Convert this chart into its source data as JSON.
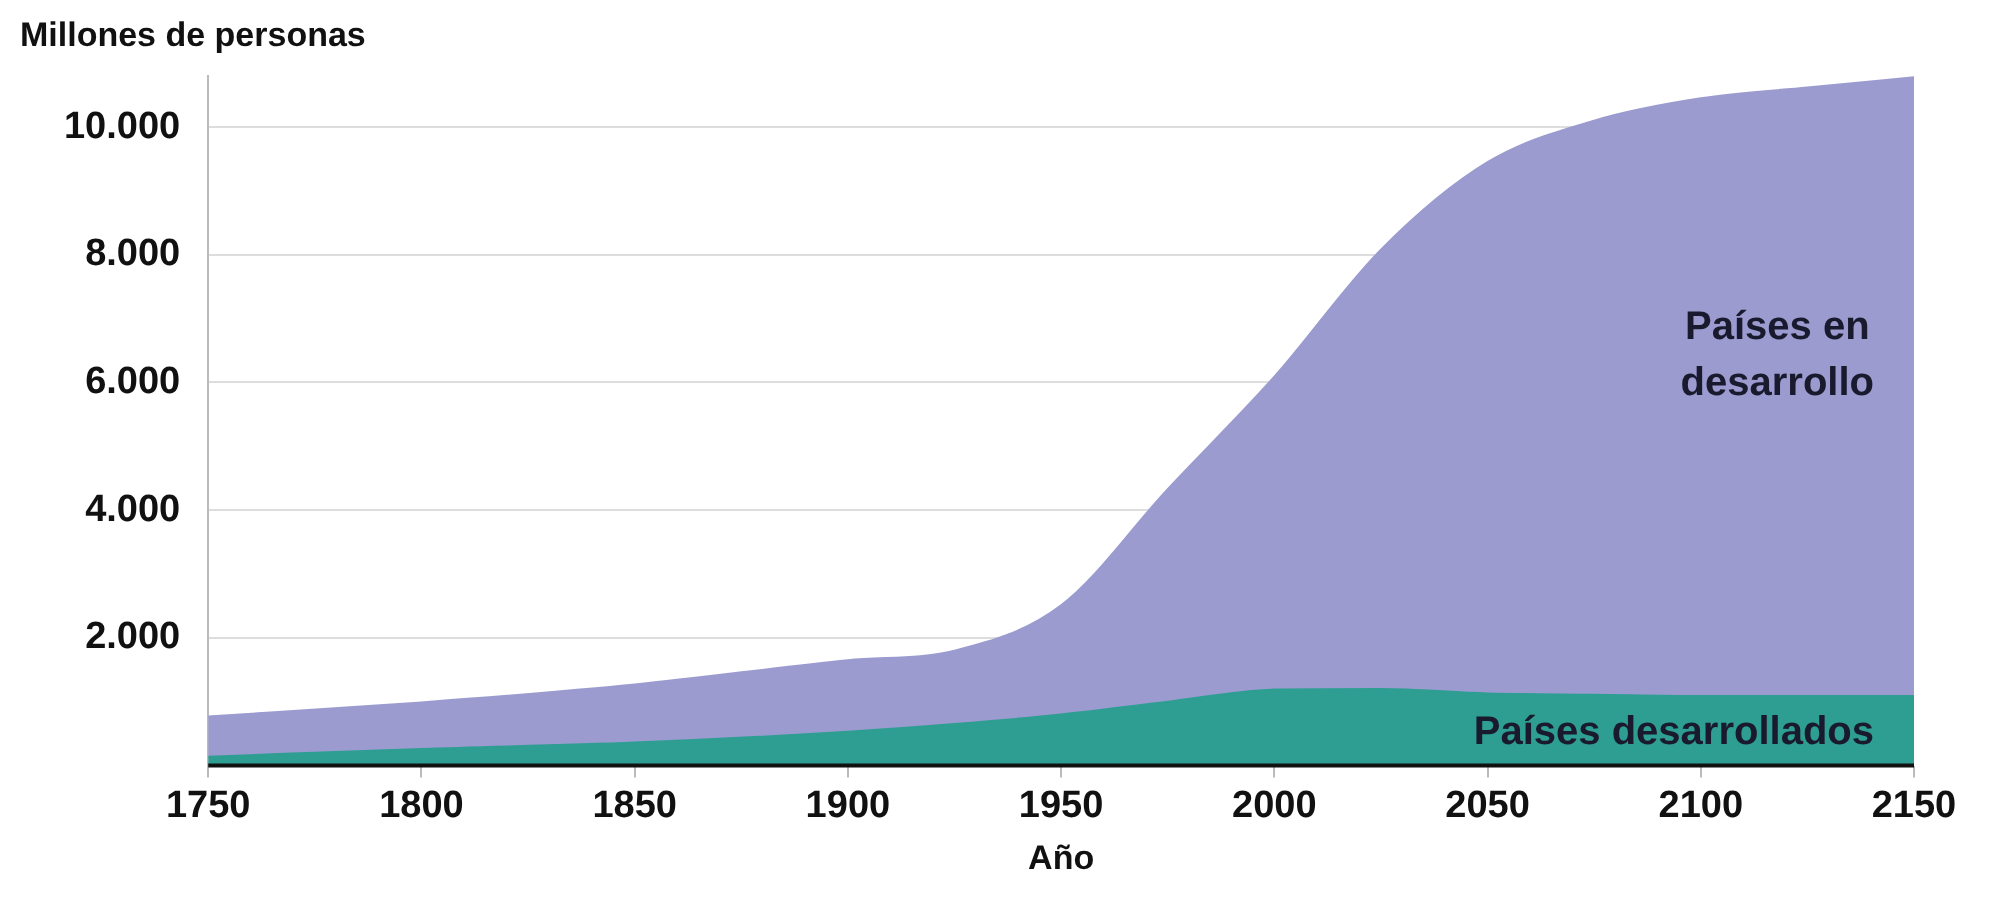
{
  "chart_data": {
    "type": "area",
    "stacked": true,
    "ylabel": "Millones de personas",
    "xlabel": "Año",
    "x": [
      1750,
      1800,
      1850,
      1900,
      1925,
      1950,
      1975,
      2000,
      2025,
      2050,
      2075,
      2100,
      2125,
      2150
    ],
    "series": [
      {
        "name": "Países desarrollados",
        "color": "#2e9e92",
        "values": [
          140,
          260,
          360,
          530,
          650,
          800,
          1000,
          1190,
          1200,
          1130,
          1110,
          1090,
          1090,
          1090
        ]
      },
      {
        "name": "Países en desarrollo",
        "color": "#9b9bd0",
        "values": [
          630,
          730,
          910,
          1120,
          1150,
          1710,
          3330,
          4900,
          6880,
          8320,
          8990,
          9360,
          9530,
          9690
        ]
      }
    ],
    "xlim": [
      1750,
      2150
    ],
    "xticks": [
      1750,
      1800,
      1850,
      1900,
      1950,
      2000,
      2050,
      2100,
      2150
    ],
    "ylim": [
      0,
      10800
    ],
    "yticks": [
      {
        "value": 2000,
        "label": "2.000"
      },
      {
        "value": 4000,
        "label": "4.000"
      },
      {
        "value": 6000,
        "label": "6.000"
      },
      {
        "value": 8000,
        "label": "8.000"
      },
      {
        "value": 10000,
        "label": "10.000"
      }
    ],
    "grid": "y",
    "legend": false
  }
}
